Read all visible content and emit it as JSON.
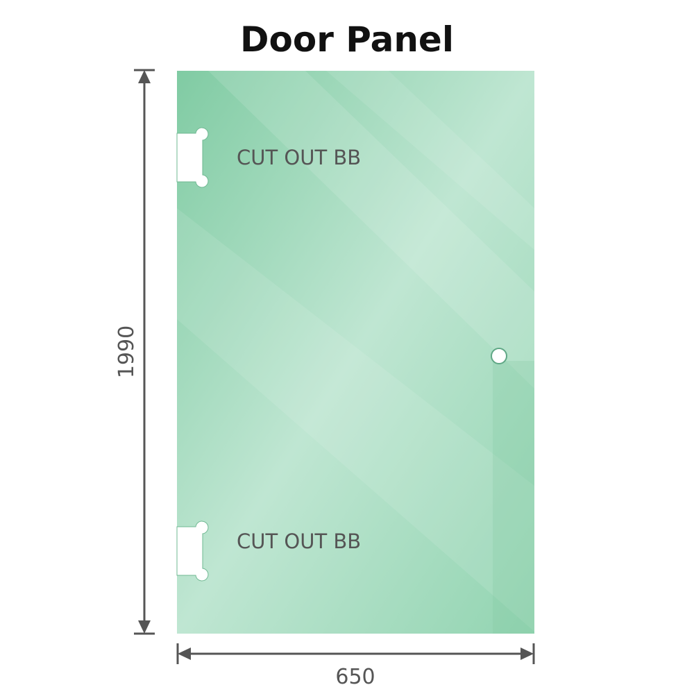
{
  "title": "Door Panel",
  "dimensions": {
    "height": "1990",
    "width": "650"
  },
  "cutouts": [
    {
      "label": "CUT OUT BB"
    },
    {
      "label": "CUT OUT BB"
    }
  ],
  "colors": {
    "glass": "#86cfa8",
    "glass_light": "#bde6d1",
    "dimension_line": "#555555",
    "title": "#111111"
  }
}
